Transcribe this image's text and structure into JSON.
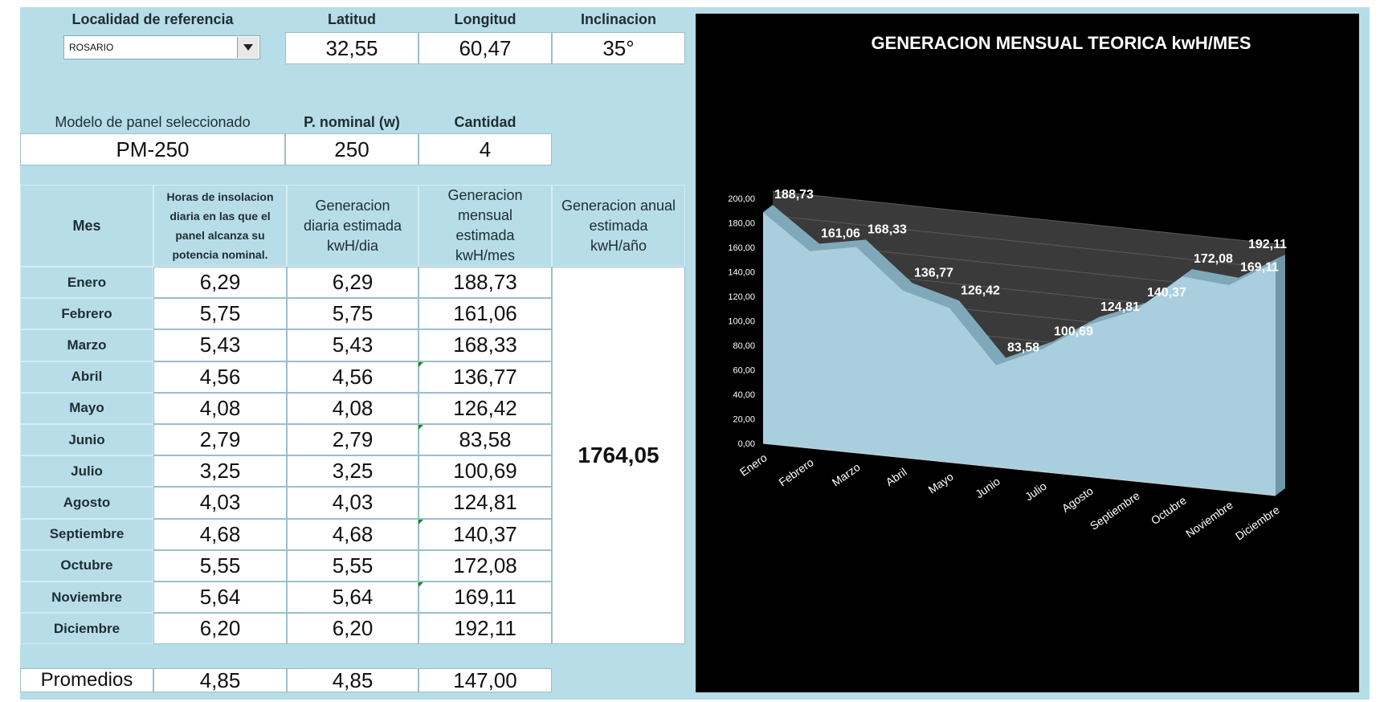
{
  "location": {
    "header": "Localidad de referencia",
    "selected": "ROSARIO",
    "lat_header": "Latitud",
    "lat_value": "32,55",
    "lon_header": "Longitud",
    "lon_value": "60,47",
    "incl_header": "Inclinacion",
    "incl_value": "35°"
  },
  "panel": {
    "model_header": "Modelo de panel seleccionado",
    "model_value": "PM-250",
    "power_header": "P. nominal (w)",
    "power_value": "250",
    "qty_header": "Cantidad",
    "qty_value": "4"
  },
  "table": {
    "headers": {
      "month": "Mes",
      "hours": "Horas de insolacion diaria en las que el panel alcanza su potencia nominal.",
      "daily": "Generacion diaria estimada kwH/dia",
      "monthly": "Generacion mensual estimada kwH/mes",
      "annual": "Generacion anual  estimada kwH/año"
    },
    "rows": [
      {
        "month": "Enero",
        "hours": "6,29",
        "daily": "6,29",
        "monthly": "188,73"
      },
      {
        "month": "Febrero",
        "hours": "5,75",
        "daily": "5,75",
        "monthly": "161,06"
      },
      {
        "month": "Marzo",
        "hours": "5,43",
        "daily": "5,43",
        "monthly": "168,33"
      },
      {
        "month": "Abril",
        "hours": "4,56",
        "daily": "4,56",
        "monthly": "136,77"
      },
      {
        "month": "Mayo",
        "hours": "4,08",
        "daily": "4,08",
        "monthly": "126,42"
      },
      {
        "month": "Junio",
        "hours": "2,79",
        "daily": "2,79",
        "monthly": "83,58"
      },
      {
        "month": "Julio",
        "hours": "3,25",
        "daily": "3,25",
        "monthly": "100,69"
      },
      {
        "month": "Agosto",
        "hours": "4,03",
        "daily": "4,03",
        "monthly": "124,81"
      },
      {
        "month": "Septiembre",
        "hours": "4,68",
        "daily": "4,68",
        "monthly": "140,37"
      },
      {
        "month": "Octubre",
        "hours": "5,55",
        "daily": "5,55",
        "monthly": "172,08"
      },
      {
        "month": "Noviembre",
        "hours": "5,64",
        "daily": "5,64",
        "monthly": "169,11"
      },
      {
        "month": "Diciembre",
        "hours": "6,20",
        "daily": "6,20",
        "monthly": "192,11"
      }
    ],
    "annual_value": "1764,05",
    "averages": {
      "label": "Promedios",
      "hours": "4,85",
      "daily": "4,85",
      "monthly": "147,00"
    }
  },
  "chart_data": {
    "type": "area",
    "title": "GENERACION MENSUAL TEORICA  kwH/MES",
    "categories": [
      "Enero",
      "Febrero",
      "Marzo",
      "Abril",
      "Mayo",
      "Junio",
      "Julio",
      "Agosto",
      "Septiembre",
      "Octubre",
      "Noviembre",
      "Diciembre"
    ],
    "values": [
      188.73,
      161.06,
      168.33,
      136.77,
      126.42,
      83.58,
      100.69,
      124.81,
      140.37,
      172.08,
      169.11,
      192.11
    ],
    "value_labels": [
      "188,73",
      "161,06",
      "168,33",
      "136,77",
      "126,42",
      "83,58",
      "100,69",
      "124,81",
      "140,37",
      "172,08",
      "169,11",
      "192,11"
    ],
    "yticks": [
      "0,00",
      "20,00",
      "40,00",
      "60,00",
      "80,00",
      "100,00",
      "120,00",
      "140,00",
      "160,00",
      "180,00",
      "200,00"
    ],
    "ylim": [
      0,
      200
    ],
    "grid": true,
    "colors": {
      "fill": "#a9cfdf",
      "background": "#000000",
      "wall": "#3a3a3a",
      "text": "#ffffff"
    }
  }
}
